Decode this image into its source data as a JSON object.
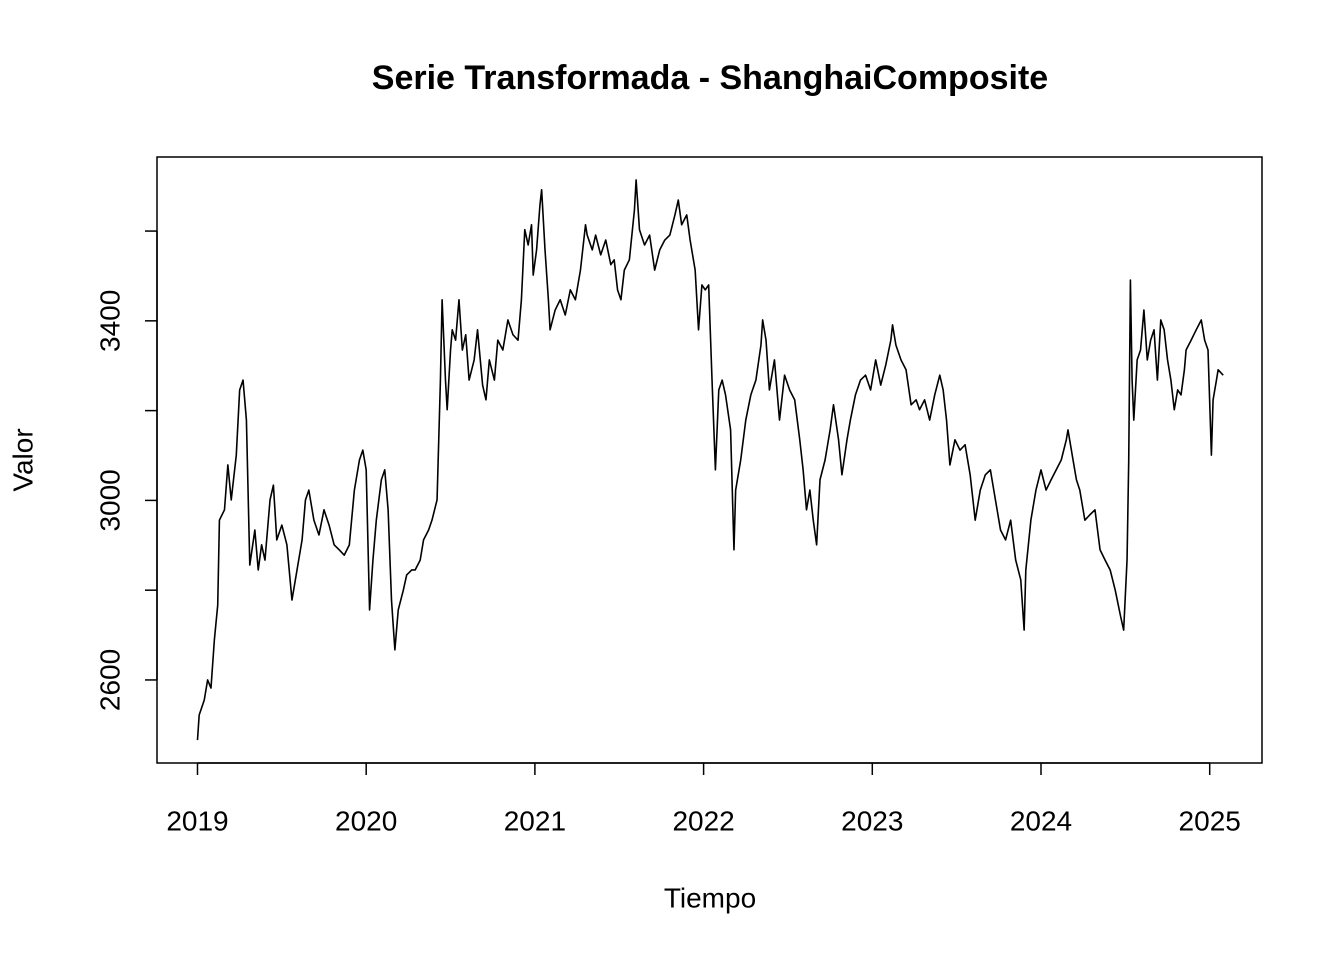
{
  "chart_data": {
    "type": "line",
    "title": "Serie Transformada - ShanghaiComposite",
    "x_label": "Tiempo",
    "y_label": "Valor",
    "xlim": [
      2018.76,
      2025.31
    ],
    "ylim": [
      2415,
      3765
    ],
    "xticks": [
      2019,
      2020,
      2021,
      2022,
      2023,
      2024,
      2025
    ],
    "yticks": [
      2600,
      {
        "value": 2800,
        "label": null
      },
      3000,
      {
        "value": 3200,
        "label": null
      },
      3400,
      {
        "value": 3600,
        "label": null
      }
    ],
    "grid": false,
    "series": [
      {
        "color": "#000000",
        "x": [
          2019.0,
          2019.01,
          2019.04,
          2019.06,
          2019.08,
          2019.1,
          2019.12,
          2019.13,
          2019.16,
          2019.18,
          2019.2,
          2019.23,
          2019.25,
          2019.27,
          2019.29,
          2019.31,
          2019.34,
          2019.36,
          2019.38,
          2019.4,
          2019.43,
          2019.45,
          2019.47,
          2019.5,
          2019.53,
          2019.56,
          2019.59,
          2019.62,
          2019.64,
          2019.66,
          2019.69,
          2019.72,
          2019.75,
          2019.78,
          2019.81,
          2019.84,
          2019.87,
          2019.9,
          2019.93,
          2019.96,
          2019.98,
          2020.0,
          2020.02,
          2020.04,
          2020.06,
          2020.09,
          2020.11,
          2020.13,
          2020.15,
          2020.17,
          2020.19,
          2020.22,
          2020.24,
          2020.27,
          2020.29,
          2020.32,
          2020.34,
          2020.37,
          2020.39,
          2020.42,
          2020.44,
          2020.45,
          2020.47,
          2020.48,
          2020.5,
          2020.51,
          2020.53,
          2020.55,
          2020.57,
          2020.59,
          2020.61,
          2020.64,
          2020.66,
          2020.69,
          2020.71,
          2020.73,
          2020.76,
          2020.78,
          2020.81,
          2020.84,
          2020.87,
          2020.9,
          2020.92,
          2020.94,
          2020.96,
          2020.98,
          2020.99,
          2021.01,
          2021.03,
          2021.04,
          2021.06,
          2021.08,
          2021.09,
          2021.12,
          2021.15,
          2021.18,
          2021.21,
          2021.24,
          2021.27,
          2021.3,
          2021.31,
          2021.34,
          2021.36,
          2021.39,
          2021.42,
          2021.45,
          2021.47,
          2021.49,
          2021.51,
          2021.53,
          2021.56,
          2021.59,
          2021.6,
          2021.62,
          2021.65,
          2021.68,
          2021.71,
          2021.74,
          2021.77,
          2021.8,
          2021.83,
          2021.85,
          2021.87,
          2021.9,
          2021.92,
          2021.95,
          2021.97,
          2021.99,
          2022.01,
          2022.03,
          2022.05,
          2022.07,
          2022.09,
          2022.11,
          2022.13,
          2022.16,
          2022.18,
          2022.19,
          2022.22,
          2022.25,
          2022.28,
          2022.31,
          2022.34,
          2022.35,
          2022.37,
          2022.39,
          2022.42,
          2022.45,
          2022.48,
          2022.51,
          2022.54,
          2022.57,
          2022.59,
          2022.61,
          2022.63,
          2022.65,
          2022.67,
          2022.69,
          2022.72,
          2022.75,
          2022.77,
          2022.8,
          2022.82,
          2022.85,
          2022.87,
          2022.9,
          2022.93,
          2022.96,
          2022.99,
          2023.02,
          2023.05,
          2023.08,
          2023.11,
          2023.12,
          2023.14,
          2023.17,
          2023.2,
          2023.23,
          2023.26,
          2023.28,
          2023.31,
          2023.34,
          2023.37,
          2023.4,
          2023.42,
          2023.44,
          2023.46,
          2023.49,
          2023.52,
          2023.55,
          2023.58,
          2023.61,
          2023.64,
          2023.67,
          2023.7,
          2023.73,
          2023.76,
          2023.79,
          2023.82,
          2023.85,
          2023.88,
          2023.9,
          2023.91,
          2023.94,
          2023.97,
          2024.0,
          2024.03,
          2024.06,
          2024.09,
          2024.12,
          2024.15,
          2024.16,
          2024.19,
          2024.21,
          2024.23,
          2024.26,
          2024.29,
          2024.32,
          2024.35,
          2024.38,
          2024.41,
          2024.44,
          2024.47,
          2024.49,
          2024.51,
          2024.52,
          2024.53,
          2024.54,
          2024.55,
          2024.57,
          2024.59,
          2024.61,
          2024.63,
          2024.65,
          2024.67,
          2024.69,
          2024.71,
          2024.73,
          2024.75,
          2024.77,
          2024.79,
          2024.81,
          2024.83,
          2024.85,
          2024.86,
          2024.89,
          2024.92,
          2024.95,
          2024.97,
          2024.99,
          2025.01,
          2025.02,
          2025.04,
          2025.05,
          2025.08
        ],
        "values": [
          2466,
          2522,
          2555,
          2600,
          2582,
          2689,
          2767,
          2956,
          2979,
          3079,
          3001,
          3101,
          3246,
          3268,
          3179,
          2856,
          2934,
          2845,
          2901,
          2867,
          3001,
          3034,
          2912,
          2945,
          2901,
          2778,
          2845,
          2912,
          3001,
          3023,
          2956,
          2923,
          2979,
          2945,
          2901,
          2890,
          2878,
          2901,
          3023,
          3090,
          3112,
          3068,
          2756,
          2867,
          2956,
          3046,
          3068,
          2979,
          2778,
          2667,
          2756,
          2800,
          2834,
          2845,
          2845,
          2867,
          2912,
          2934,
          2956,
          3001,
          3268,
          3447,
          3268,
          3202,
          3335,
          3380,
          3357,
          3447,
          3335,
          3369,
          3268,
          3313,
          3380,
          3257,
          3224,
          3313,
          3268,
          3357,
          3335,
          3402,
          3369,
          3357,
          3447,
          3603,
          3569,
          3614,
          3502,
          3558,
          3658,
          3692,
          3558,
          3447,
          3380,
          3424,
          3447,
          3413,
          3469,
          3447,
          3513,
          3614,
          3591,
          3558,
          3591,
          3547,
          3580,
          3525,
          3536,
          3469,
          3447,
          3513,
          3536,
          3647,
          3714,
          3603,
          3569,
          3591,
          3513,
          3558,
          3580,
          3591,
          3636,
          3669,
          3614,
          3636,
          3580,
          3513,
          3380,
          3480,
          3469,
          3480,
          3268,
          3068,
          3246,
          3268,
          3235,
          3157,
          2890,
          3023,
          3090,
          3179,
          3235,
          3268,
          3346,
          3402,
          3357,
          3246,
          3313,
          3179,
          3279,
          3246,
          3224,
          3135,
          3068,
          2979,
          3023,
          2956,
          2901,
          3046,
          3090,
          3157,
          3213,
          3135,
          3057,
          3135,
          3179,
          3235,
          3268,
          3279,
          3246,
          3313,
          3257,
          3302,
          3357,
          3391,
          3346,
          3313,
          3291,
          3213,
          3224,
          3202,
          3224,
          3179,
          3235,
          3279,
          3246,
          3179,
          3079,
          3135,
          3112,
          3124,
          3057,
          2956,
          3023,
          3057,
          3068,
          3001,
          2934,
          2912,
          2956,
          2867,
          2823,
          2711,
          2845,
          2956,
          3023,
          3068,
          3023,
          3046,
          3068,
          3090,
          3135,
          3157,
          3090,
          3046,
          3023,
          2956,
          2968,
          2979,
          2890,
          2867,
          2845,
          2800,
          2745,
          2711,
          2867,
          3090,
          3491,
          3268,
          3179,
          3313,
          3335,
          3424,
          3313,
          3357,
          3380,
          3268,
          3402,
          3380,
          3313,
          3268,
          3202,
          3246,
          3235,
          3291,
          3335,
          3357,
          3380,
          3402,
          3357,
          3335,
          3101,
          3224,
          3268,
          3291,
          3279
        ]
      }
    ]
  }
}
